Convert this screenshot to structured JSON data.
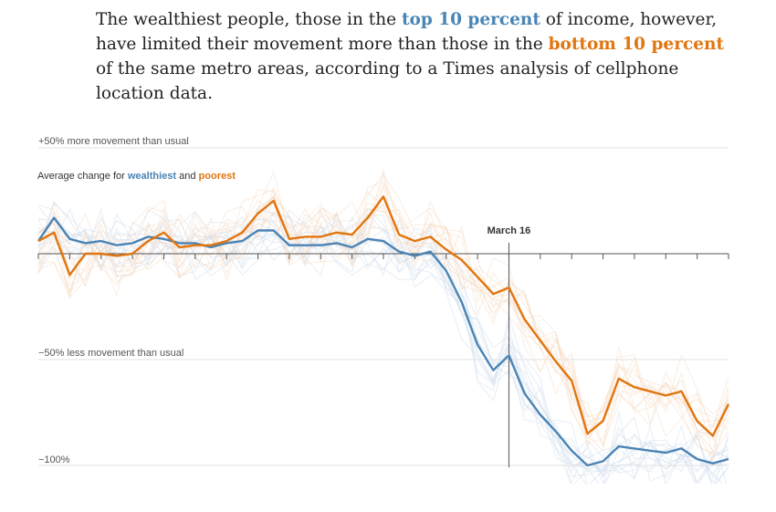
{
  "headline": {
    "part1": "The wealthiest people, those in the ",
    "highlight1": "top 10 percent",
    "part2": " of income, however, have limited their movement more than those in the ",
    "highlight2": "bottom 10 percent",
    "part3": " of the same metro areas, according to a Times analysis of cellphone location data."
  },
  "colors": {
    "wealthiest": "#4a84b5",
    "poorest": "#e1750f",
    "background_lines_blue": "#c9daea",
    "background_lines_orange": "#f7d8bc"
  },
  "chart_data": {
    "type": "line",
    "title": "",
    "legend": {
      "prefix": "Average change for ",
      "series1": "wealthiest",
      "connector": " and ",
      "series2": "poorest"
    },
    "y_labels": {
      "top": "+50% more movement than usual",
      "mid": "−50% less movement than usual",
      "bottom": "−100%"
    },
    "ylim": [
      -100,
      50
    ],
    "annotation": {
      "label": "March 16",
      "x_index": 30
    },
    "series": [
      {
        "name": "wealthiest",
        "values": [
          6,
          17,
          7,
          5,
          6,
          4,
          5,
          8,
          7,
          5,
          5,
          3,
          5,
          6,
          11,
          11,
          4,
          4,
          4,
          5,
          3,
          7,
          6,
          1,
          -1,
          1,
          -8,
          -23,
          -43,
          -55,
          -48,
          -66,
          -76,
          -84,
          -93,
          -100,
          -98,
          -91,
          -92,
          -93,
          -94,
          -92,
          -97,
          -99,
          -97
        ]
      },
      {
        "name": "poorest",
        "values": [
          6,
          10,
          -10,
          0,
          0,
          -1,
          0,
          6,
          10,
          3,
          4,
          4,
          6,
          10,
          19,
          25,
          7,
          8,
          8,
          10,
          9,
          17,
          27,
          9,
          6,
          8,
          2,
          -3,
          -11,
          -19,
          -16,
          -31,
          -41,
          -51,
          -60,
          -85,
          -79,
          -59,
          -63,
          -65,
          -67,
          -65,
          -79,
          -86,
          -71
        ]
      }
    ]
  }
}
